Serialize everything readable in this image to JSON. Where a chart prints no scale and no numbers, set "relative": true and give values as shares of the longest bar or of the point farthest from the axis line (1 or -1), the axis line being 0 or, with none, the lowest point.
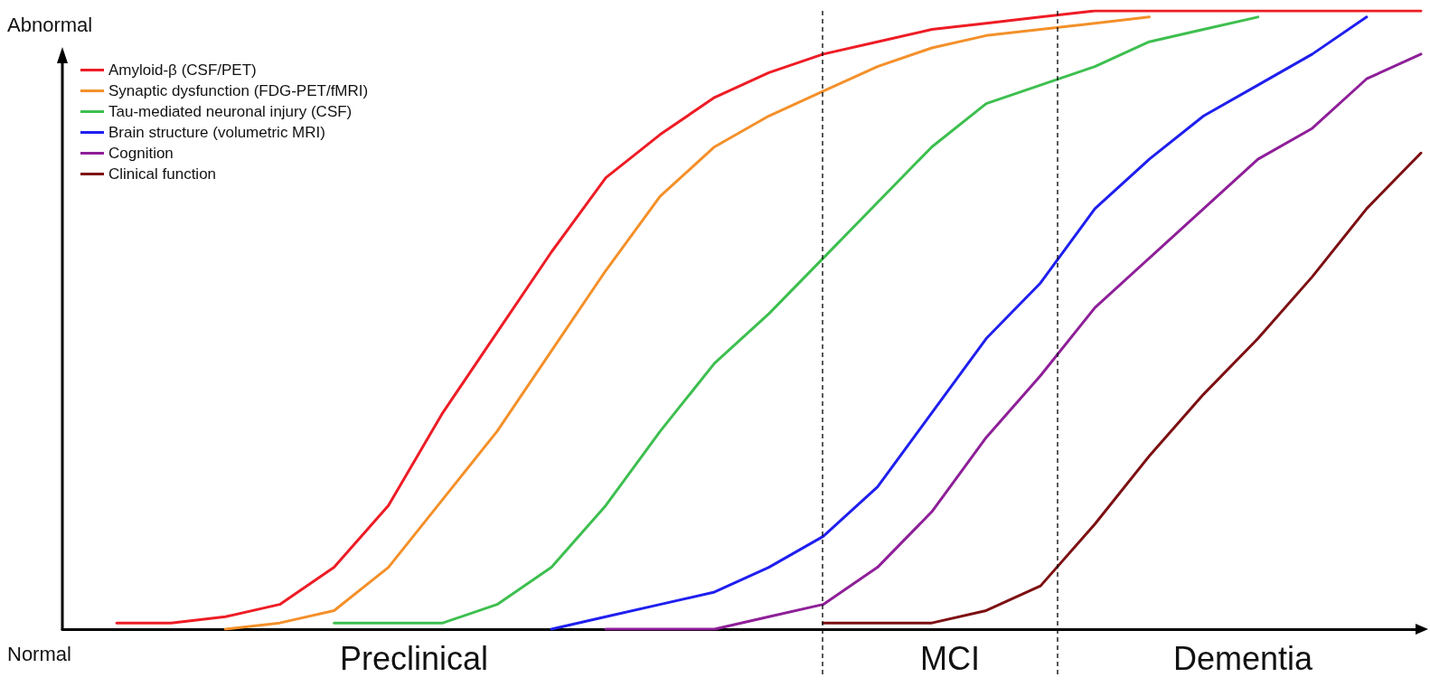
{
  "chart_data": {
    "type": "line",
    "relative": true,
    "marker": "none",
    "line_style": "solid",
    "legend": "top left",
    "grid": false,
    "categories": [
      null,
      null,
      null,
      null,
      null,
      null,
      null,
      null,
      null,
      null,
      null,
      null,
      null,
      null,
      null,
      null,
      null,
      null,
      null,
      null,
      null,
      null,
      null,
      null,
      null,
      null
    ],
    "series": [
      {
        "name": "Amyloid-β (CSF/PET)",
        "color": "#ee1c25",
        "values": [
          null,
          0.01,
          0.01,
          0.02,
          0.04,
          0.1,
          0.2,
          0.35,
          0.48,
          0.61,
          0.73,
          0.8,
          0.86,
          0.9,
          0.93,
          0.95,
          0.97,
          0.98,
          0.99,
          1.0,
          1.0,
          1.0,
          1.0,
          1.0,
          1.0,
          1.0
        ]
      },
      {
        "name": "Synaptic dysfunction (FDG-PET/fMRI)",
        "color": "#f4902a",
        "values": [
          null,
          null,
          null,
          0.0,
          0.01,
          0.03,
          0.1,
          0.21,
          0.32,
          0.45,
          0.58,
          0.7,
          0.78,
          0.83,
          0.87,
          0.91,
          0.94,
          0.96,
          0.97,
          0.98,
          0.99,
          null,
          null,
          null,
          null,
          null
        ]
      },
      {
        "name": "Tau-mediated neuronal injury (CSF)",
        "color": "#3dbf4f",
        "values": [
          null,
          null,
          null,
          null,
          null,
          0.01,
          0.01,
          0.01,
          0.04,
          0.1,
          0.2,
          0.32,
          0.43,
          0.51,
          0.6,
          0.69,
          0.78,
          0.85,
          0.88,
          0.91,
          0.95,
          0.97,
          0.99,
          null,
          null,
          null
        ]
      },
      {
        "name": "Brain structure (volumetric MRI)",
        "color": "#1f1fef",
        "values": [
          null,
          null,
          null,
          null,
          null,
          null,
          null,
          null,
          null,
          0.0,
          0.02,
          0.04,
          0.06,
          0.1,
          0.15,
          0.23,
          0.35,
          0.47,
          0.56,
          0.68,
          0.76,
          0.83,
          0.88,
          0.93,
          0.99,
          null
        ]
      },
      {
        "name": "Cognition",
        "color": "#8e1f98",
        "values": [
          null,
          null,
          null,
          null,
          null,
          null,
          null,
          null,
          null,
          null,
          0.0,
          0.0,
          0.0,
          0.02,
          0.04,
          0.1,
          0.19,
          0.31,
          0.41,
          0.52,
          0.6,
          0.68,
          0.76,
          0.81,
          0.89,
          0.93
        ]
      },
      {
        "name": "Clinical function",
        "color": "#7d0f12",
        "values": [
          null,
          null,
          null,
          null,
          null,
          null,
          null,
          null,
          null,
          null,
          null,
          null,
          null,
          null,
          0.01,
          0.01,
          0.01,
          0.03,
          0.07,
          0.17,
          0.28,
          0.38,
          0.47,
          0.57,
          0.68,
          0.77
        ]
      }
    ],
    "annotations": [
      "Abnormal",
      "Normal",
      "Preclinical",
      "MCI",
      "Dementia"
    ]
  }
}
